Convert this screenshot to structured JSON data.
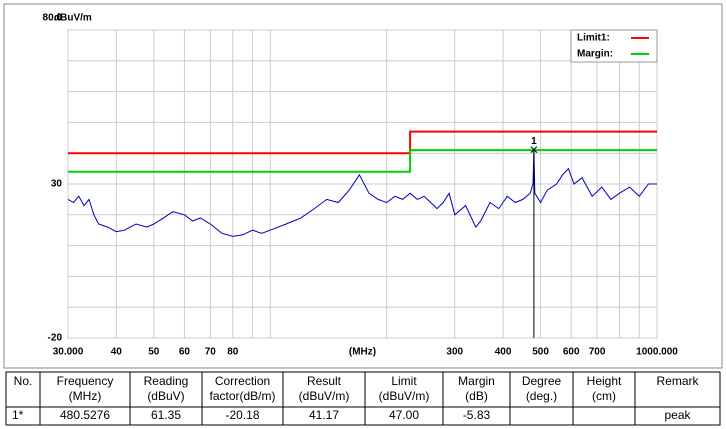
{
  "chart_data": {
    "type": "line",
    "y_unit_label": "dBuV/m",
    "x_unit_label": "(MHz)",
    "xlog": true,
    "xlim": [
      30,
      1000
    ],
    "ylim": [
      -20,
      80
    ],
    "xticks": [
      {
        "value": 30,
        "label": "30.000"
      },
      40,
      50,
      60,
      70,
      80,
      300,
      400,
      500,
      600,
      700,
      {
        "value": 1000,
        "label": "1000.000"
      }
    ],
    "xgrid": [
      90,
      100,
      200,
      800,
      900
    ],
    "yticks": [
      {
        "value": 80,
        "label": "80.0"
      },
      30,
      -20
    ],
    "ygrid": [
      70,
      60,
      50,
      40,
      20,
      10,
      0,
      -10
    ],
    "legend": "upper right",
    "series": [
      {
        "name": "Limit1:",
        "color": "#ff0000",
        "x": [
          30,
          230,
          230,
          1000
        ],
        "values": [
          40,
          40,
          47,
          47
        ]
      },
      {
        "name": "Margin:",
        "color": "#00d000",
        "x": [
          30,
          230,
          230,
          1000
        ],
        "values": [
          34,
          34,
          41,
          41
        ]
      }
    ],
    "trace": {
      "color": "#0000c0",
      "x": [
        30,
        31,
        32,
        33,
        34,
        35,
        36,
        38,
        40,
        42,
        45,
        48,
        50,
        53,
        56,
        60,
        63,
        66,
        70,
        75,
        80,
        85,
        90,
        95,
        100,
        110,
        120,
        130,
        140,
        150,
        160,
        170,
        175,
        180,
        190,
        200,
        210,
        220,
        230,
        240,
        250,
        260,
        270,
        280,
        290,
        300,
        320,
        340,
        350,
        370,
        390,
        410,
        430,
        450,
        470,
        478,
        480.5276,
        483,
        500,
        520,
        550,
        570,
        590,
        610,
        640,
        680,
        720,
        760,
        800,
        850,
        900,
        950,
        1000
      ],
      "values": [
        25,
        24,
        26,
        23,
        25,
        20,
        17,
        16,
        14.5,
        15,
        17,
        16,
        17,
        19,
        21,
        20,
        18,
        19,
        17,
        14,
        13,
        13.5,
        15,
        14,
        15,
        17,
        19,
        22,
        25,
        24,
        28,
        33,
        30,
        27,
        25,
        24,
        26,
        25,
        27,
        25,
        26,
        24,
        22,
        24,
        27,
        20,
        23,
        16,
        18,
        24,
        22,
        26,
        24,
        25,
        27,
        30,
        41.17,
        27,
        24,
        28,
        30,
        33,
        35,
        30,
        32,
        26,
        29,
        25,
        27,
        29,
        26,
        30,
        30
      ]
    },
    "markers": [
      {
        "label": "1",
        "x": 480.5276,
        "value": 41.17
      }
    ]
  },
  "table": {
    "header": [
      [
        "No."
      ],
      [
        "Frequency",
        "(MHz)"
      ],
      [
        "Reading",
        "(dBuV)"
      ],
      [
        "Correction",
        "factor(dB/m)"
      ],
      [
        "Result",
        "(dBuV/m)"
      ],
      [
        "Limit",
        "(dBuV/m)"
      ],
      [
        "Margin",
        "(dB)"
      ],
      [
        "Degree",
        "(deg.)"
      ],
      [
        "Height",
        "(cm)"
      ],
      [
        "Remark"
      ]
    ],
    "rows": [
      [
        "1*",
        "480.5276",
        "61.35",
        "-20.18",
        "41.17",
        "47.00",
        "-5.83",
        "",
        "",
        "peak"
      ]
    ]
  }
}
